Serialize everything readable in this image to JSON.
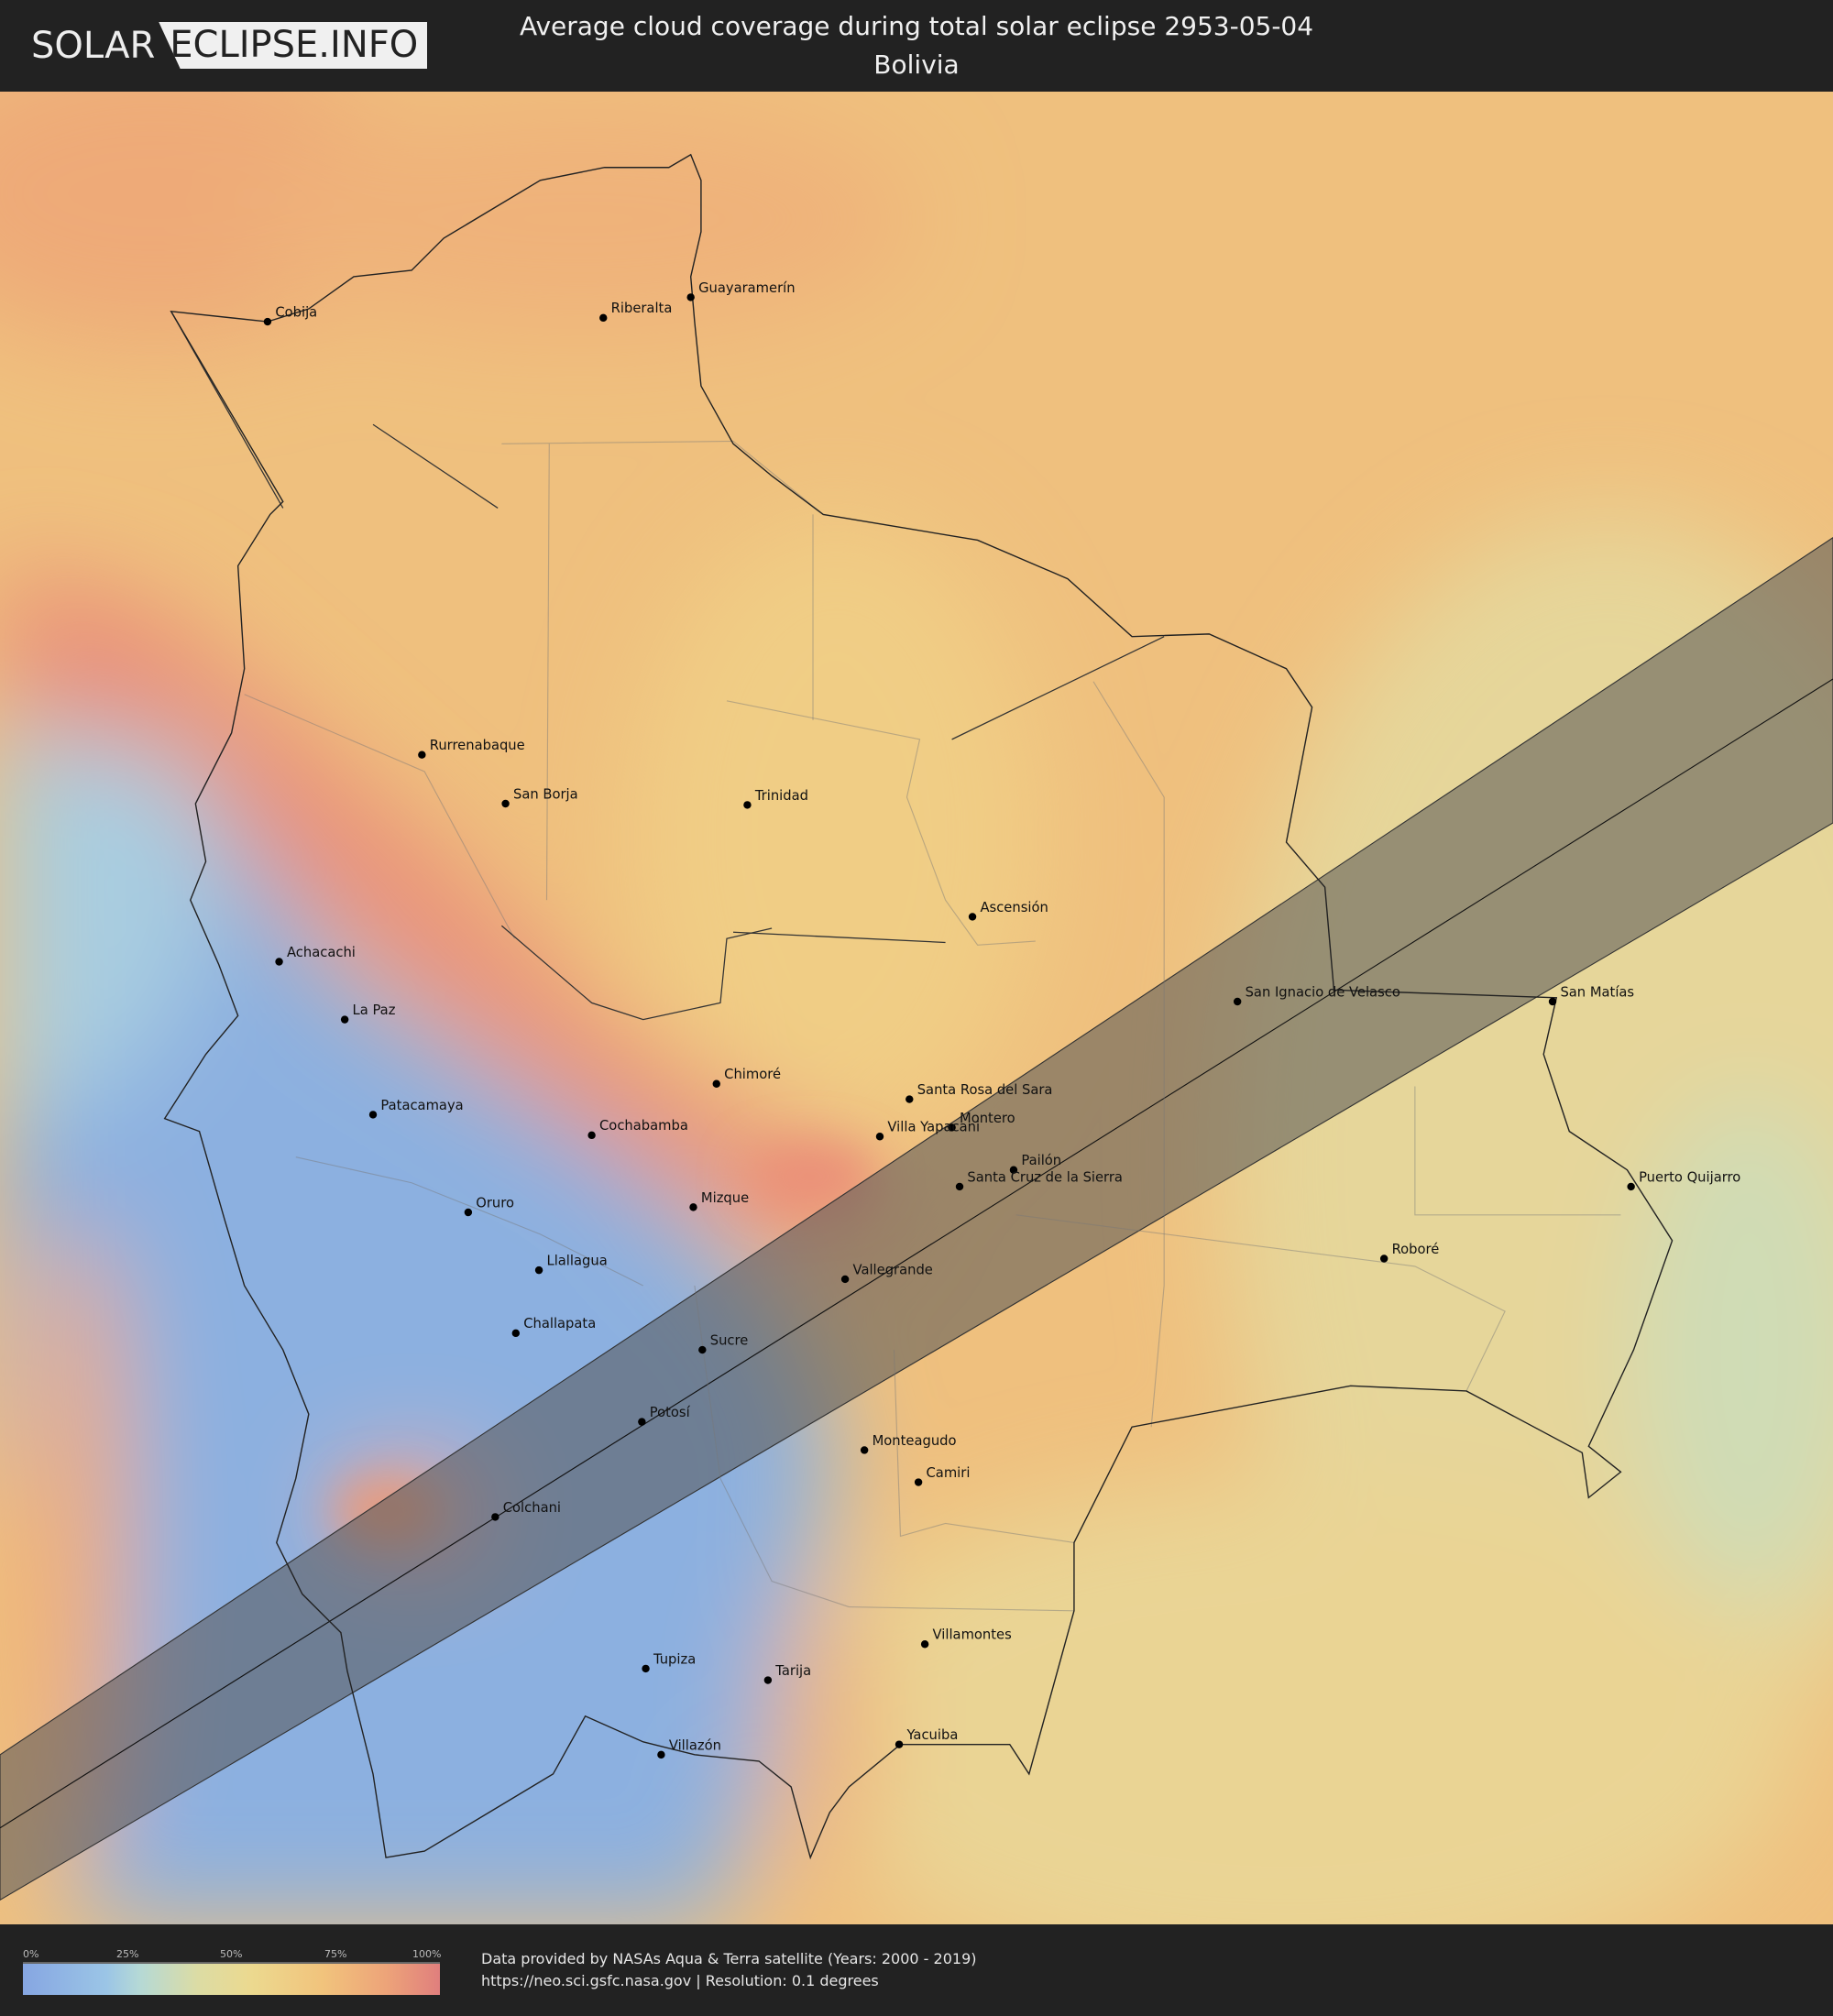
{
  "header": {
    "logo_left": "SOLAR",
    "logo_right": "ECLIPSE.INFO",
    "title": "Average cloud coverage during total solar eclipse 2953-05-04",
    "subtitle": "Bolivia"
  },
  "map": {
    "country": "Bolivia",
    "eclipse_path_color": "#555555",
    "cities": [
      {
        "name": "Cobija"
      },
      {
        "name": "Riberalta"
      },
      {
        "name": "Guayaramerín"
      },
      {
        "name": "Rurrenabaque"
      },
      {
        "name": "San Borja"
      },
      {
        "name": "Trinidad"
      },
      {
        "name": "Ascensión"
      },
      {
        "name": "Achacachi"
      },
      {
        "name": "La Paz"
      },
      {
        "name": "San Ignacio de Velasco"
      },
      {
        "name": "San Matías"
      },
      {
        "name": "Chimoré"
      },
      {
        "name": "Santa Rosa del Sara"
      },
      {
        "name": "Patacamaya"
      },
      {
        "name": "Montero"
      },
      {
        "name": "Villa Yapacani"
      },
      {
        "name": "Cochabamba"
      },
      {
        "name": "Pailón"
      },
      {
        "name": "Santa Cruz de la Sierra"
      },
      {
        "name": "Puerto Quijarro"
      },
      {
        "name": "Oruro"
      },
      {
        "name": "Mizque"
      },
      {
        "name": "Roboré"
      },
      {
        "name": "Llallagua"
      },
      {
        "name": "Vallegrande"
      },
      {
        "name": "Challapata"
      },
      {
        "name": "Sucre"
      },
      {
        "name": "Potosí"
      },
      {
        "name": "Monteagudo"
      },
      {
        "name": "Camiri"
      },
      {
        "name": "Colchani"
      },
      {
        "name": "Villamontes"
      },
      {
        "name": "Tupiza"
      },
      {
        "name": "Tarija"
      },
      {
        "name": "Villazón"
      },
      {
        "name": "Yacuiba"
      }
    ]
  },
  "legend": {
    "ticks": [
      "0%",
      "25%",
      "50%",
      "75%",
      "100%"
    ],
    "colors": [
      "#86a6e2",
      "#b5d9d6",
      "#ecd98f",
      "#f1c37c",
      "#e07f7d"
    ]
  },
  "footer": {
    "credit_line1": "Data provided by NASAs Aqua & Terra satellite (Years: 2000 - 2019)",
    "credit_line2": "https://neo.sci.gsfc.nasa.gov | Resolution: 0.1 degrees"
  }
}
